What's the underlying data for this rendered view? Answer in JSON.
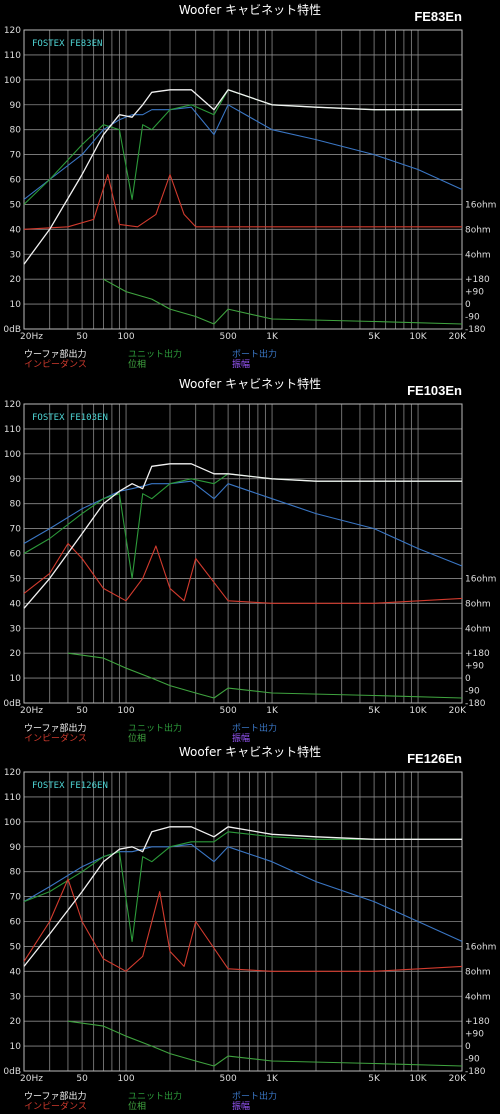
{
  "colors": {
    "woofer": "#f2f2f2",
    "unit": "#2c9a3a",
    "port": "#3a76c4",
    "impedance": "#d23b2e",
    "phase": "#3fa33f",
    "distortion": "#9b59ff",
    "grid": "#8a8a8a",
    "accent_label": "#4fd6d6"
  },
  "legend_labels": {
    "woofer": "ウーファ部出力",
    "unit": "ユニット出力",
    "port": "ポート出力",
    "impedance": "インピーダンス",
    "phase": "位相",
    "distortion": "振幅"
  },
  "chart_data": [
    {
      "type": "line",
      "title": "Woofer キャビネット特性",
      "model": "FE83En",
      "brand_label": "FOSTEX FE83EN",
      "xscale": "log",
      "xlim": [
        20,
        20000
      ],
      "ylim": [
        0,
        120
      ],
      "x_ticks": [
        "20Hz",
        "50",
        "100",
        "500",
        "1K",
        "5K",
        "10K",
        "20K"
      ],
      "y_ticks": [
        "0dB",
        "10",
        "20",
        "30",
        "40",
        "50",
        "60",
        "70",
        "80",
        "90",
        "100",
        "110",
        "120"
      ],
      "right_ticks": [
        "16ohm",
        "8ohm",
        "4ohm",
        "+180",
        "+90",
        "0",
        "-90",
        "-180"
      ],
      "grid": true,
      "legend_position": "bottom",
      "series": [
        {
          "name": "ウーファ部出力",
          "x": [
            20,
            30,
            50,
            70,
            90,
            110,
            130,
            150,
            200,
            280,
            400,
            500,
            1000,
            2000,
            5000,
            10000,
            20000
          ],
          "y": [
            26,
            40,
            62,
            78,
            86,
            85,
            90,
            95,
            96,
            96,
            88,
            96,
            90,
            89,
            88,
            88,
            88
          ]
        },
        {
          "name": "ユニット出力",
          "x": [
            20,
            30,
            50,
            70,
            90,
            110,
            130,
            150,
            200,
            280,
            400,
            500,
            1000,
            2000,
            5000,
            10000,
            20000
          ],
          "y": [
            50,
            60,
            74,
            82,
            80,
            52,
            82,
            80,
            88,
            90,
            86,
            96,
            90,
            89,
            88,
            88,
            88
          ]
        },
        {
          "name": "ポート出力",
          "x": [
            20,
            30,
            50,
            70,
            90,
            110,
            130,
            150,
            200,
            280,
            400,
            500,
            1000,
            2000,
            5000,
            10000,
            20000
          ],
          "y": [
            52,
            60,
            70,
            80,
            84,
            86,
            86,
            88,
            88,
            89,
            78,
            90,
            80,
            76,
            70,
            64,
            56
          ]
        },
        {
          "name": "インピーダンス",
          "x": [
            20,
            40,
            60,
            75,
            90,
            120,
            160,
            200,
            250,
            300,
            500,
            1000,
            5000,
            20000
          ],
          "y": [
            40,
            41,
            44,
            62,
            42,
            41,
            46,
            62,
            46,
            41,
            41,
            41,
            41,
            41
          ]
        },
        {
          "name": "位相",
          "x": [
            70,
            100,
            150,
            200,
            300,
            400,
            500,
            1000,
            5000,
            20000
          ],
          "y": [
            20,
            15,
            12,
            8,
            5,
            2,
            8,
            4,
            3,
            2
          ]
        }
      ]
    },
    {
      "type": "line",
      "title": "Woofer キャビネット特性",
      "model": "FE103En",
      "brand_label": "FOSTEX FE103EN",
      "xscale": "log",
      "xlim": [
        20,
        20000
      ],
      "ylim": [
        0,
        120
      ],
      "x_ticks": [
        "20Hz",
        "50",
        "100",
        "500",
        "1K",
        "5K",
        "10K",
        "20K"
      ],
      "y_ticks": [
        "0dB",
        "10",
        "20",
        "30",
        "40",
        "50",
        "60",
        "70",
        "80",
        "90",
        "100",
        "110",
        "120"
      ],
      "right_ticks": [
        "16ohm",
        "8ohm",
        "4ohm",
        "+180",
        "+90",
        "0",
        "-90",
        "-180"
      ],
      "grid": true,
      "legend_position": "bottom",
      "series": [
        {
          "name": "ウーファ部出力",
          "x": [
            20,
            30,
            50,
            70,
            90,
            110,
            130,
            150,
            200,
            280,
            400,
            500,
            1000,
            2000,
            5000,
            10000,
            20000
          ],
          "y": [
            38,
            50,
            68,
            80,
            85,
            88,
            86,
            95,
            96,
            96,
            92,
            92,
            90,
            89,
            89,
            89,
            89
          ]
        },
        {
          "name": "ユニット出力",
          "x": [
            20,
            30,
            50,
            70,
            90,
            110,
            130,
            150,
            200,
            280,
            400,
            500,
            1000,
            2000,
            5000,
            10000,
            20000
          ],
          "y": [
            60,
            66,
            76,
            82,
            84,
            50,
            84,
            82,
            88,
            90,
            88,
            92,
            90,
            89,
            89,
            89,
            89
          ]
        },
        {
          "name": "ポート出力",
          "x": [
            20,
            30,
            50,
            70,
            90,
            110,
            130,
            150,
            200,
            280,
            400,
            500,
            1000,
            2000,
            5000,
            10000,
            20000
          ],
          "y": [
            64,
            70,
            78,
            82,
            85,
            86,
            87,
            88,
            88,
            89,
            82,
            88,
            82,
            76,
            70,
            62,
            55
          ]
        },
        {
          "name": "インピーダンス",
          "x": [
            20,
            30,
            40,
            50,
            70,
            100,
            130,
            160,
            200,
            250,
            300,
            500,
            1000,
            5000,
            20000
          ],
          "y": [
            44,
            52,
            64,
            58,
            46,
            41,
            50,
            63,
            46,
            41,
            58,
            41,
            40,
            40,
            42
          ]
        },
        {
          "name": "位相",
          "x": [
            40,
            70,
            100,
            150,
            200,
            300,
            400,
            500,
            1000,
            5000,
            20000
          ],
          "y": [
            20,
            18,
            14,
            10,
            7,
            4,
            2,
            6,
            4,
            3,
            2
          ]
        }
      ]
    },
    {
      "type": "line",
      "title": "Woofer キャビネット特性",
      "model": "FE126En",
      "brand_label": "FOSTEX FE126EN",
      "xscale": "log",
      "xlim": [
        20,
        20000
      ],
      "ylim": [
        0,
        120
      ],
      "x_ticks": [
        "20Hz",
        "50",
        "100",
        "500",
        "1K",
        "5K",
        "10K",
        "20K"
      ],
      "y_ticks": [
        "0dB",
        "10",
        "20",
        "30",
        "40",
        "50",
        "60",
        "70",
        "80",
        "90",
        "100",
        "110",
        "120"
      ],
      "right_ticks": [
        "16ohm",
        "8ohm",
        "4ohm",
        "+180",
        "+90",
        "0",
        "-90",
        "-180"
      ],
      "grid": true,
      "legend_position": "bottom",
      "series": [
        {
          "name": "ウーファ部出力",
          "x": [
            20,
            30,
            50,
            70,
            90,
            110,
            130,
            150,
            200,
            280,
            400,
            500,
            1000,
            2000,
            5000,
            10000,
            20000
          ],
          "y": [
            42,
            55,
            72,
            84,
            89,
            90,
            88,
            96,
            98,
            98,
            94,
            98,
            95,
            94,
            93,
            93,
            93
          ]
        },
        {
          "name": "ユニット出力",
          "x": [
            20,
            30,
            50,
            70,
            90,
            110,
            130,
            150,
            200,
            280,
            400,
            500,
            1000,
            2000,
            5000,
            10000,
            20000
          ],
          "y": [
            68,
            72,
            80,
            86,
            88,
            52,
            86,
            84,
            90,
            92,
            92,
            96,
            94,
            93,
            93,
            93,
            93
          ]
        },
        {
          "name": "ポート出力",
          "x": [
            20,
            30,
            50,
            70,
            90,
            110,
            130,
            150,
            200,
            280,
            400,
            500,
            1000,
            2000,
            5000,
            10000,
            20000
          ],
          "y": [
            68,
            74,
            82,
            86,
            88,
            88,
            89,
            90,
            90,
            91,
            84,
            90,
            84,
            76,
            68,
            60,
            52
          ]
        },
        {
          "name": "インピーダンス",
          "x": [
            20,
            30,
            40,
            50,
            70,
            100,
            130,
            170,
            200,
            250,
            300,
            500,
            1000,
            5000,
            20000
          ],
          "y": [
            44,
            60,
            77,
            60,
            45,
            40,
            46,
            72,
            48,
            42,
            60,
            41,
            40,
            40,
            42
          ]
        },
        {
          "name": "位相",
          "x": [
            40,
            70,
            100,
            150,
            200,
            300,
            400,
            500,
            1000,
            5000,
            20000
          ],
          "y": [
            20,
            18,
            14,
            10,
            7,
            4,
            2,
            6,
            4,
            3,
            2
          ]
        }
      ]
    }
  ]
}
